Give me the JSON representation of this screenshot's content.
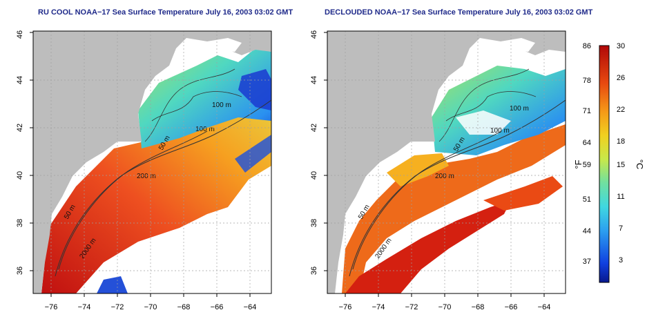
{
  "panels": [
    {
      "id": "left",
      "title": "RU COOL NOAA−17 Sea Surface Temperature July 16, 2003 03:02 GMT",
      "x_ticks": [
        "−76",
        "−74",
        "−72",
        "−70",
        "−68",
        "−66",
        "−64"
      ],
      "y_ticks": [
        "36",
        "38",
        "40",
        "42",
        "44",
        "46"
      ],
      "contours": [
        "100 m",
        "100 m",
        "50 m",
        "200 m",
        "50 m",
        "2000 m"
      ]
    },
    {
      "id": "right",
      "title": "DECLOUDED NOAA−17 Sea Surface Temperature July 16, 2003 03:02 GMT",
      "x_ticks": [
        "−76",
        "−74",
        "−72",
        "−70",
        "−68",
        "−66",
        "−64"
      ],
      "y_ticks": [
        "36",
        "38",
        "40",
        "42",
        "44",
        "46"
      ],
      "contours": [
        "100 m",
        "100 m",
        "50 m",
        "200 m",
        "50 m",
        "2000 m"
      ]
    }
  ],
  "colorbar": {
    "f_label": "°F",
    "c_label": "°C",
    "f_ticks": [
      "86",
      "78",
      "71",
      "64",
      "59",
      "51",
      "44",
      "37"
    ],
    "c_ticks": [
      "30",
      "26",
      "22",
      "18",
      "15",
      "11",
      "7",
      "3"
    ]
  },
  "colors": {
    "land": "#bdbdbd",
    "frame": "#000000",
    "grid": "#a0a0a0",
    "title": "#1f2a8a"
  }
}
